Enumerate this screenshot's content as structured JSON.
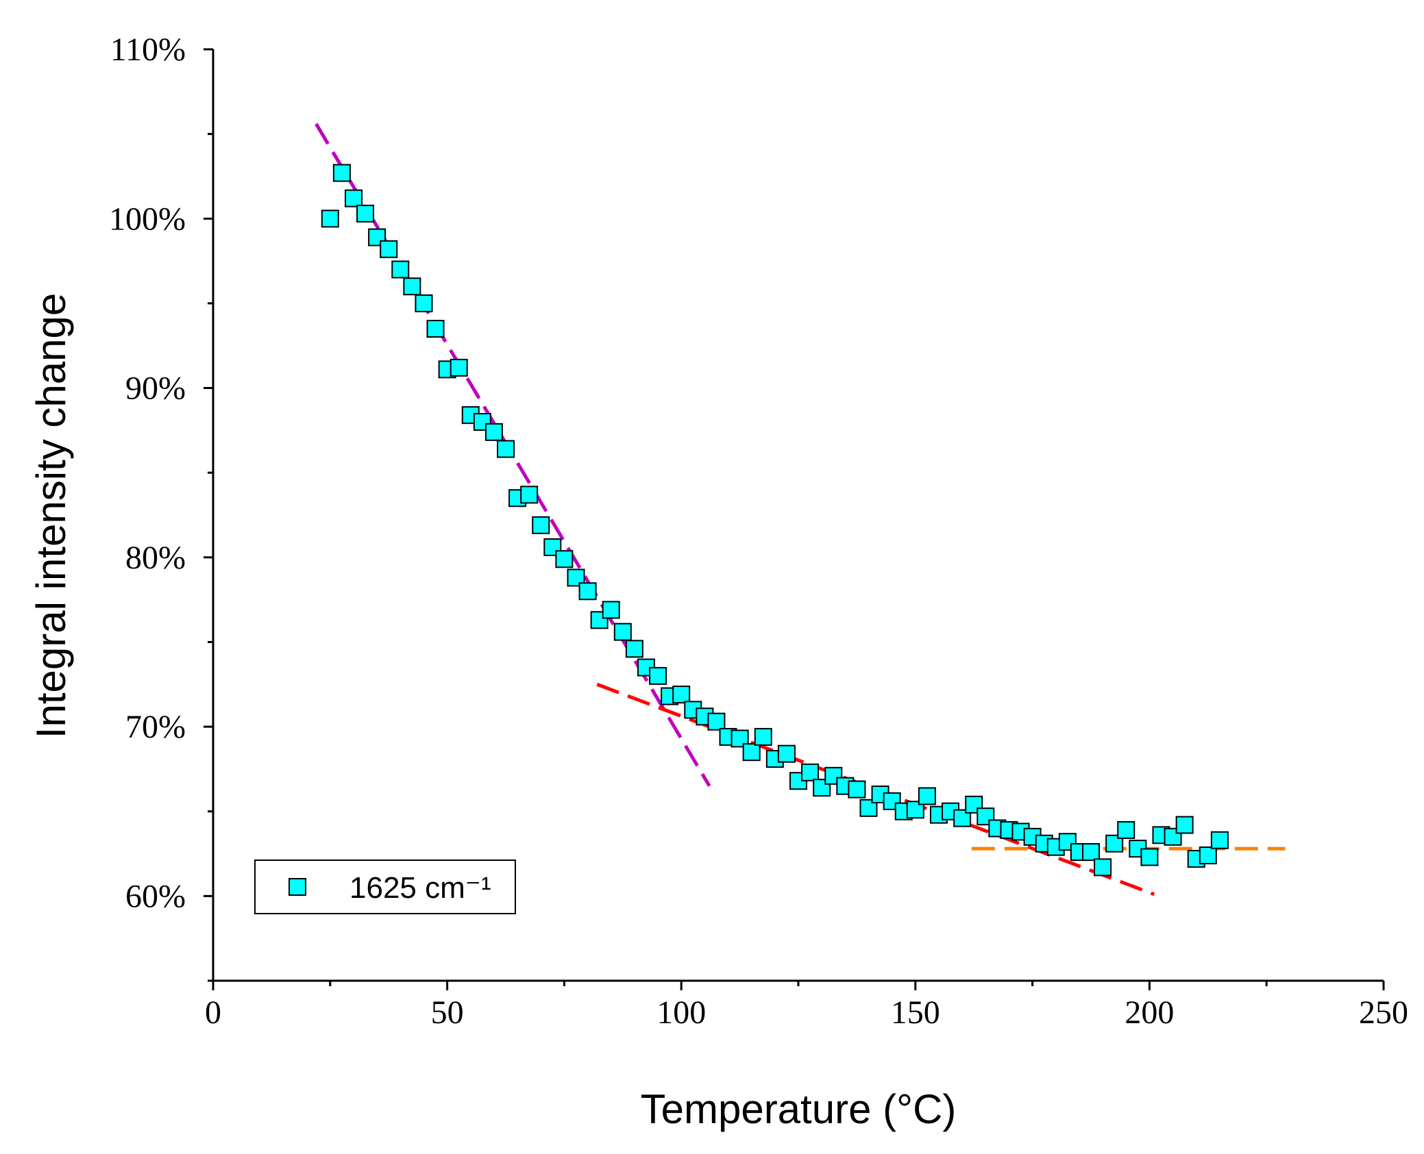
{
  "chart_data": {
    "type": "scatter",
    "title": "",
    "xlabel": "Temperature (°C)",
    "ylabel": "Integral intensity change",
    "xlim": [
      0,
      250
    ],
    "ylim": [
      55,
      110
    ],
    "x_ticks": [
      0,
      50,
      100,
      150,
      200,
      250
    ],
    "x_tick_labels": [
      "0",
      "50",
      "100",
      "150",
      "200",
      "250"
    ],
    "y_ticks": [
      60,
      70,
      80,
      90,
      100,
      110
    ],
    "y_tick_labels": [
      "60%",
      "70%",
      "80%",
      "90%",
      "100%",
      "110%"
    ],
    "legend": {
      "position": "bottom-left",
      "label": "1625 cm⁻¹"
    },
    "series": [
      {
        "name": "1625 cm⁻¹",
        "marker": "square",
        "color": "#00ffff",
        "points": [
          [
            25,
            100.0
          ],
          [
            27.5,
            102.7
          ],
          [
            30,
            101.2
          ],
          [
            32.5,
            100.3
          ],
          [
            35,
            98.9
          ],
          [
            37.5,
            98.2
          ],
          [
            40,
            97.0
          ],
          [
            42.5,
            96.0
          ],
          [
            45,
            95.0
          ],
          [
            47.5,
            93.5
          ],
          [
            50,
            91.1
          ],
          [
            52.5,
            91.2
          ],
          [
            55,
            88.4
          ],
          [
            57.5,
            88.0
          ],
          [
            60,
            87.4
          ],
          [
            62.5,
            86.4
          ],
          [
            65,
            83.5
          ],
          [
            67.5,
            83.7
          ],
          [
            70,
            81.9
          ],
          [
            72.5,
            80.6
          ],
          [
            75,
            79.9
          ],
          [
            77.5,
            78.8
          ],
          [
            80,
            78.0
          ],
          [
            82.5,
            76.3
          ],
          [
            85,
            76.9
          ],
          [
            87.5,
            75.6
          ],
          [
            90,
            74.6
          ],
          [
            92.5,
            73.5
          ],
          [
            95,
            73.0
          ],
          [
            97.5,
            71.8
          ],
          [
            100,
            71.9
          ],
          [
            102.5,
            71.0
          ],
          [
            105,
            70.6
          ],
          [
            107.5,
            70.3
          ],
          [
            110,
            69.4
          ],
          [
            112.5,
            69.3
          ],
          [
            115,
            68.5
          ],
          [
            117.5,
            69.4
          ],
          [
            120,
            68.1
          ],
          [
            122.5,
            68.4
          ],
          [
            125,
            66.8
          ],
          [
            127.5,
            67.3
          ],
          [
            130,
            66.4
          ],
          [
            132.5,
            67.1
          ],
          [
            135,
            66.5
          ],
          [
            137.5,
            66.3
          ],
          [
            140,
            65.2
          ],
          [
            142.5,
            66.0
          ],
          [
            145,
            65.6
          ],
          [
            147.5,
            65.0
          ],
          [
            150,
            65.1
          ],
          [
            152.5,
            65.9
          ],
          [
            155,
            64.8
          ],
          [
            157.5,
            65.0
          ],
          [
            160,
            64.6
          ],
          [
            162.5,
            65.4
          ],
          [
            165,
            64.7
          ],
          [
            167.5,
            64.0
          ],
          [
            170,
            63.9
          ],
          [
            172.5,
            63.8
          ],
          [
            175,
            63.5
          ],
          [
            177.5,
            63.1
          ],
          [
            180,
            62.9
          ],
          [
            182.5,
            63.2
          ],
          [
            185,
            62.6
          ],
          [
            187.5,
            62.6
          ],
          [
            190,
            61.7
          ],
          [
            192.5,
            63.1
          ],
          [
            195,
            63.9
          ],
          [
            197.5,
            62.8
          ],
          [
            200,
            62.3
          ],
          [
            202.5,
            63.6
          ],
          [
            205,
            63.5
          ],
          [
            207.5,
            64.2
          ],
          [
            210,
            62.2
          ],
          [
            212.5,
            62.4
          ],
          [
            215,
            63.3
          ]
        ]
      }
    ],
    "fit_lines": [
      {
        "name": "fit-low",
        "color": "#c000c0",
        "from": [
          22,
          105.6
        ],
        "to": [
          106,
          66.5
        ]
      },
      {
        "name": "fit-mid",
        "color": "#ff0000",
        "from": [
          82,
          72.5
        ],
        "to": [
          201,
          60.1
        ]
      },
      {
        "name": "fit-high",
        "color": "#ff8000",
        "from": [
          162,
          62.8
        ],
        "to": [
          229,
          62.8
        ]
      }
    ]
  }
}
